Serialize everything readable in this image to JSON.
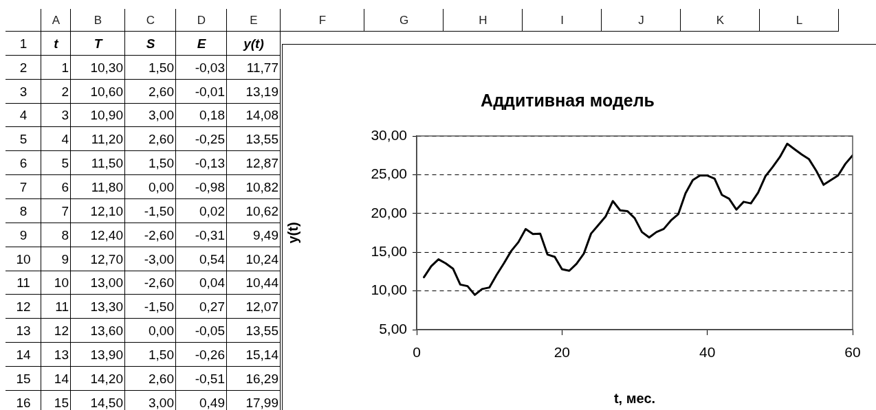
{
  "chart_data": [
    {
      "type": "heatmap",
      "categories": [
        "t",
        "T",
        "S",
        "E",
        "y(t)"
      ],
      "y_categories": [
        "2",
        "3",
        "4",
        "5",
        "6",
        "7",
        "8",
        "9",
        "10",
        "11",
        "12",
        "13",
        "14",
        "15",
        "16"
      ],
      "cells": [
        [
          "1",
          "10,30",
          "1,50",
          "-0,03",
          "11,77"
        ],
        [
          "2",
          "10,60",
          "2,60",
          "-0,01",
          "13,19"
        ],
        [
          "3",
          "10,90",
          "3,00",
          "0,18",
          "14,08"
        ],
        [
          "4",
          "11,20",
          "2,60",
          "-0,25",
          "13,55"
        ],
        [
          "5",
          "11,50",
          "1,50",
          "-0,13",
          "12,87"
        ],
        [
          "6",
          "11,80",
          "0,00",
          "-0,98",
          "10,82"
        ],
        [
          "7",
          "12,10",
          "-1,50",
          "0,02",
          "10,62"
        ],
        [
          "8",
          "12,40",
          "-2,60",
          "-0,31",
          "9,49"
        ],
        [
          "9",
          "12,70",
          "-3,00",
          "0,54",
          "10,24"
        ],
        [
          "10",
          "13,00",
          "-2,60",
          "0,04",
          "10,44"
        ],
        [
          "11",
          "13,30",
          "-1,50",
          "0,27",
          "12,07"
        ],
        [
          "12",
          "13,60",
          "0,00",
          "-0,05",
          "13,55"
        ],
        [
          "13",
          "13,90",
          "1,50",
          "-0,26",
          "15,14"
        ],
        [
          "14",
          "14,20",
          "2,60",
          "-0,51",
          "16,29"
        ],
        [
          "15",
          "14,50",
          "3,00",
          "0,49",
          "17,99"
        ]
      ],
      "annotations": [
        "A",
        "B",
        "C",
        "D",
        "E",
        "F",
        "G",
        "H",
        "I",
        "J",
        "K",
        "L",
        "1"
      ]
    },
    {
      "type": "line",
      "title": "Аддитивная модель",
      "xlabel": "t, мес.",
      "ylabel": "y(t)",
      "x": [
        1,
        2,
        3,
        4,
        5,
        6,
        7,
        8,
        9,
        10,
        11,
        12,
        13,
        14,
        15,
        16,
        17,
        18,
        19,
        20,
        21,
        22,
        23,
        24,
        25,
        26,
        27,
        28,
        29,
        30,
        31,
        32,
        33,
        34,
        35,
        36,
        37,
        38,
        39,
        40,
        41,
        42,
        43,
        44,
        45,
        46,
        47,
        48,
        49,
        50,
        51,
        52,
        53,
        54,
        55,
        56,
        57,
        58,
        59,
        60
      ],
      "values": [
        11.77,
        13.19,
        14.08,
        13.55,
        12.87,
        10.82,
        10.62,
        9.49,
        10.24,
        10.44,
        12.07,
        13.55,
        15.14,
        16.29,
        17.99,
        17.35,
        17.4,
        14.7,
        14.4,
        12.8,
        12.6,
        13.5,
        14.8,
        17.4,
        18.5,
        19.6,
        21.6,
        20.4,
        20.3,
        19.4,
        17.6,
        16.9,
        17.6,
        18.0,
        19.1,
        19.9,
        22.6,
        24.3,
        24.9,
        24.9,
        24.5,
        22.4,
        21.9,
        20.5,
        21.5,
        21.3,
        22.7,
        24.8,
        26.0,
        27.3,
        29.0,
        28.3,
        27.6,
        27.0,
        25.5,
        23.7,
        24.3,
        24.9,
        26.4,
        27.5
      ],
      "color": "#000000",
      "marker": "none",
      "line_style": "solid",
      "xlim": [
        0,
        60
      ],
      "xticks": [
        0,
        20,
        40,
        60
      ],
      "ylim": [
        5,
        30
      ],
      "yticks": [
        {
          "value": 5,
          "label": "5,00"
        },
        {
          "value": 10,
          "label": "10,00"
        },
        {
          "value": 15,
          "label": "15,00"
        },
        {
          "value": 20,
          "label": "20,00"
        },
        {
          "value": 25,
          "label": "25,00"
        },
        {
          "value": 30,
          "label": "30,00"
        }
      ],
      "grid": "y"
    }
  ]
}
